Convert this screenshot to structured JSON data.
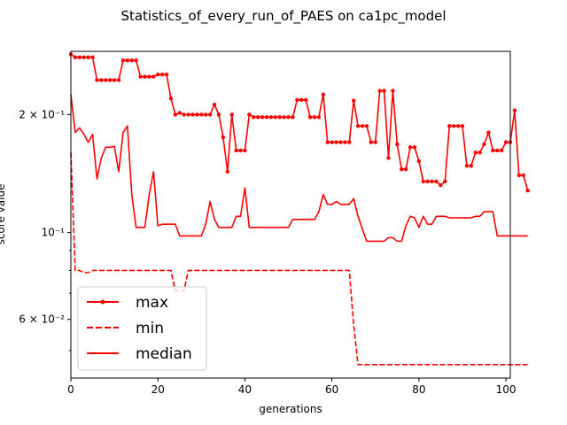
{
  "chart_data": {
    "type": "line",
    "title": "Statistics_of_every_run_of_PAES on ca1pc_model",
    "xlabel": "generations",
    "ylabel": "score value",
    "yscale": "log",
    "xlim": [
      0,
      101
    ],
    "ylim": [
      0.0425,
      0.29
    ],
    "x_ticks": [
      0,
      20,
      40,
      60,
      80,
      100
    ],
    "y_ticks": [
      {
        "value": 0.2,
        "label": "2 × 10⁻¹"
      },
      {
        "value": 0.1,
        "label": "10⁻¹"
      },
      {
        "value": 0.06,
        "label": "6 × 10⁻²"
      }
    ],
    "y_minor_ticks": [
      0.05,
      0.07,
      0.08,
      0.09,
      0.3
    ],
    "legend": {
      "placement": "lower-left"
    },
    "color": "#ff0000",
    "series": [
      {
        "name": "max",
        "style": "solid-markers",
        "values": [
          0.285,
          0.28,
          0.28,
          0.28,
          0.28,
          0.28,
          0.245,
          0.245,
          0.245,
          0.245,
          0.245,
          0.245,
          0.275,
          0.275,
          0.275,
          0.275,
          0.25,
          0.25,
          0.25,
          0.25,
          0.253,
          0.253,
          0.253,
          0.22,
          0.2,
          0.202,
          0.2,
          0.2,
          0.2,
          0.2,
          0.2,
          0.2,
          0.2,
          0.212,
          0.2,
          0.175,
          0.143,
          0.2,
          0.162,
          0.162,
          0.162,
          0.2,
          0.197,
          0.197,
          0.197,
          0.197,
          0.197,
          0.197,
          0.197,
          0.197,
          0.197,
          0.197,
          0.218,
          0.218,
          0.218,
          0.197,
          0.197,
          0.197,
          0.225,
          0.17,
          0.17,
          0.17,
          0.17,
          0.17,
          0.17,
          0.217,
          0.187,
          0.187,
          0.187,
          0.17,
          0.17,
          0.23,
          0.23,
          0.155,
          0.23,
          0.168,
          0.145,
          0.145,
          0.165,
          0.165,
          0.152,
          0.135,
          0.135,
          0.135,
          0.135,
          0.132,
          0.135,
          0.187,
          0.187,
          0.187,
          0.187,
          0.148,
          0.148,
          0.16,
          0.16,
          0.168,
          0.18,
          0.162,
          0.162,
          0.162,
          0.17,
          0.17,
          0.205,
          0.14,
          0.14,
          0.128
        ]
      },
      {
        "name": "min",
        "style": "dashed",
        "values": [
          0.16,
          0.08,
          0.08,
          0.079,
          0.079,
          0.08,
          0.08,
          0.08,
          0.08,
          0.08,
          0.08,
          0.08,
          0.08,
          0.08,
          0.08,
          0.08,
          0.08,
          0.08,
          0.08,
          0.08,
          0.08,
          0.08,
          0.08,
          0.08,
          0.071,
          0.071,
          0.071,
          0.08,
          0.08,
          0.08,
          0.08,
          0.08,
          0.08,
          0.08,
          0.08,
          0.08,
          0.08,
          0.08,
          0.08,
          0.08,
          0.08,
          0.08,
          0.08,
          0.08,
          0.08,
          0.08,
          0.08,
          0.08,
          0.08,
          0.08,
          0.08,
          0.08,
          0.08,
          0.08,
          0.08,
          0.08,
          0.08,
          0.08,
          0.08,
          0.08,
          0.08,
          0.08,
          0.08,
          0.08,
          0.08,
          0.058,
          0.046,
          0.046,
          0.046,
          0.046,
          0.046,
          0.046,
          0.046,
          0.046,
          0.046,
          0.046,
          0.046,
          0.046,
          0.046,
          0.046,
          0.046,
          0.046,
          0.046,
          0.046,
          0.046,
          0.046,
          0.046,
          0.046,
          0.046,
          0.046,
          0.046,
          0.046,
          0.046,
          0.046,
          0.046,
          0.046,
          0.046,
          0.046,
          0.046,
          0.046,
          0.046,
          0.046,
          0.046,
          0.046,
          0.046,
          0.046
        ]
      },
      {
        "name": "median",
        "style": "solid",
        "values": [
          0.225,
          0.18,
          0.185,
          0.178,
          0.17,
          0.178,
          0.137,
          0.155,
          0.165,
          0.165,
          0.166,
          0.143,
          0.18,
          0.187,
          0.125,
          0.103,
          0.103,
          0.103,
          0.125,
          0.143,
          0.104,
          0.105,
          0.105,
          0.105,
          0.105,
          0.098,
          0.098,
          0.098,
          0.098,
          0.098,
          0.098,
          0.105,
          0.12,
          0.108,
          0.103,
          0.103,
          0.103,
          0.103,
          0.11,
          0.11,
          0.13,
          0.103,
          0.103,
          0.103,
          0.103,
          0.103,
          0.103,
          0.103,
          0.103,
          0.103,
          0.103,
          0.108,
          0.108,
          0.108,
          0.108,
          0.108,
          0.108,
          0.113,
          0.125,
          0.118,
          0.118,
          0.12,
          0.118,
          0.118,
          0.118,
          0.122,
          0.11,
          0.102,
          0.095,
          0.095,
          0.095,
          0.095,
          0.095,
          0.097,
          0.097,
          0.095,
          0.095,
          0.104,
          0.11,
          0.109,
          0.103,
          0.11,
          0.105,
          0.105,
          0.11,
          0.11,
          0.11,
          0.109,
          0.109,
          0.109,
          0.109,
          0.109,
          0.109,
          0.11,
          0.11,
          0.113,
          0.113,
          0.113,
          0.098,
          0.098,
          0.098,
          0.098,
          0.098,
          0.098,
          0.098,
          0.098
        ]
      }
    ]
  }
}
